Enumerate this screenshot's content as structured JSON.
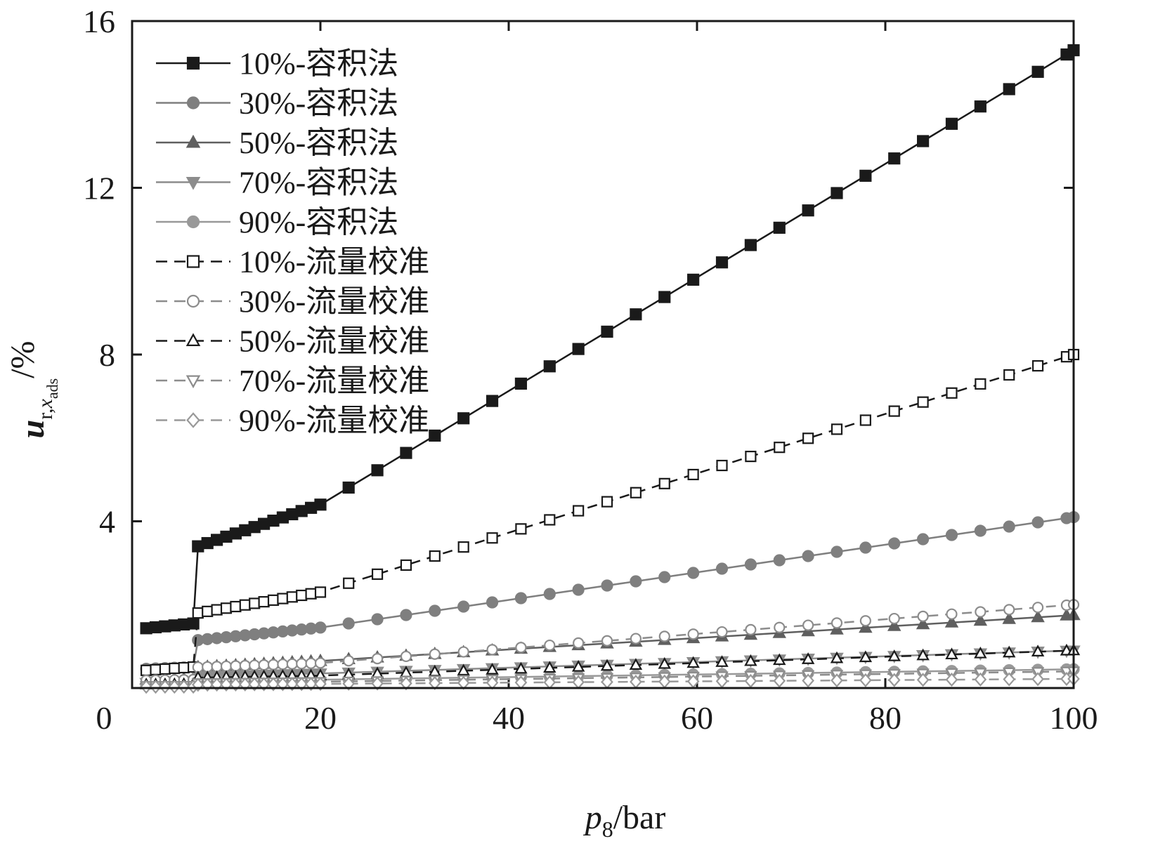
{
  "chart_data": {
    "type": "line",
    "xlabel": {
      "var": "p",
      "sub": "8",
      "unit": "/bar"
    },
    "ylabel": {
      "var": "u",
      "sub": "r,",
      "subvar": "x",
      "subsub": "ads",
      "unit": "/%"
    },
    "xlim": [
      0,
      100
    ],
    "ylim": [
      0,
      16
    ],
    "xticks": [
      0,
      20,
      40,
      60,
      80,
      100
    ],
    "yticks": [
      0,
      4,
      8,
      12,
      16
    ],
    "legend_position": "top-left",
    "series": [
      {
        "name": "10%-容积法",
        "method": "vol",
        "marker": "square-filled",
        "color": "#1a1a1a",
        "dashed": false,
        "jump_x": 7,
        "y_before": 1.4,
        "y_after": 3.4,
        "y_at_20": 4.4,
        "y_at_100": 15.3
      },
      {
        "name": "30%-容积法",
        "method": "vol",
        "marker": "circle-filled",
        "color": "#7f7f7f",
        "dashed": false,
        "jump_x": 7,
        "y_before": 0.45,
        "y_after": 1.15,
        "y_at_20": 1.45,
        "y_at_100": 4.1
      },
      {
        "name": "50%-容积法",
        "method": "vol",
        "marker": "triangle-up-filled",
        "color": "#5f5f5f",
        "dashed": false,
        "jump_x": 7,
        "y_before": 0.2,
        "y_after": 0.5,
        "y_at_20": 0.65,
        "y_at_100": 1.75
      },
      {
        "name": "70%-容积法",
        "method": "vol",
        "marker": "triangle-down-filled",
        "color": "#8c8c8c",
        "dashed": false,
        "jump_x": 7,
        "y_before": 0.12,
        "y_after": 0.28,
        "y_at_20": 0.35,
        "y_at_100": 0.9
      },
      {
        "name": "90%-容积法",
        "method": "vol",
        "marker": "circle-filled",
        "color": "#999999",
        "dashed": false,
        "jump_x": 7,
        "y_before": 0.08,
        "y_after": 0.18,
        "y_at_20": 0.2,
        "y_at_100": 0.45
      },
      {
        "name": "10%-流量校准",
        "method": "flow",
        "marker": "square-open",
        "color": "#1a1a1a",
        "dashed": true,
        "jump_x": 7,
        "y_before": 0.4,
        "y_after": 1.8,
        "y_at_20": 2.3,
        "y_at_100": 8.0
      },
      {
        "name": "30%-流量校准",
        "method": "flow",
        "marker": "circle-open",
        "color": "#8c8c8c",
        "dashed": true,
        "jump_x": 7,
        "y_before": 0.18,
        "y_after": 0.5,
        "y_at_20": 0.6,
        "y_at_100": 2.0
      },
      {
        "name": "50%-流量校准",
        "method": "flow",
        "marker": "triangle-up-open",
        "color": "#1a1a1a",
        "dashed": true,
        "jump_x": 7,
        "y_before": 0.08,
        "y_after": 0.25,
        "y_at_20": 0.3,
        "y_at_100": 0.9
      },
      {
        "name": "70%-流量校准",
        "method": "flow",
        "marker": "triangle-down-open",
        "color": "#8c8c8c",
        "dashed": true,
        "jump_x": 7,
        "y_before": 0.05,
        "y_after": 0.12,
        "y_at_20": 0.15,
        "y_at_100": 0.4
      },
      {
        "name": "90%-流量校准",
        "method": "flow",
        "marker": "diamond-open",
        "color": "#999999",
        "dashed": true,
        "jump_x": 7,
        "y_before": 0.03,
        "y_after": 0.08,
        "y_at_20": 0.1,
        "y_at_100": 0.22
      }
    ]
  }
}
